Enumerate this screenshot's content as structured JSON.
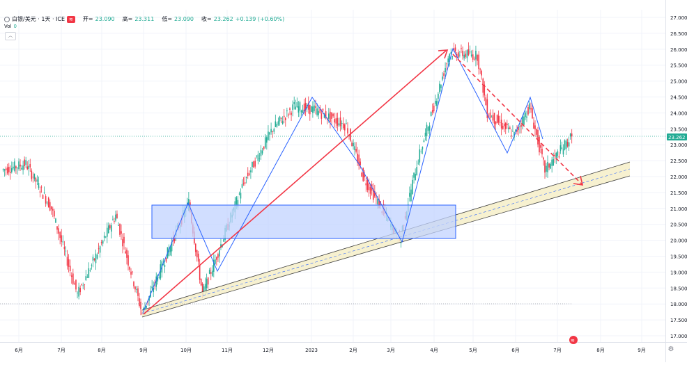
{
  "header": {
    "symbol": "白银/美元 · 1天 · ICE",
    "badge": "≋",
    "open_label": "开=",
    "open": "23.090",
    "high_label": "高=",
    "high": "23.311",
    "low_label": "低=",
    "low": "23.090",
    "close_label": "收=",
    "close": "23.262",
    "change": "+0.139 (+0.60%)",
    "vol_label": "Vol",
    "vol": "0",
    "collapse_icon": "chevron-up-icon"
  },
  "chart_data": {
    "type": "candlestick",
    "price_axis": {
      "min": 17.0,
      "max": 27.0,
      "side": "right",
      "ticks": [
        "27.000",
        "26.500",
        "26.000",
        "25.500",
        "25.000",
        "24.500",
        "24.000",
        "23.500",
        "23.000",
        "22.500",
        "22.000",
        "21.500",
        "21.000",
        "20.500",
        "20.000",
        "19.500",
        "19.000",
        "18.500",
        "18.000",
        "17.500",
        "17.000"
      ]
    },
    "time_axis": [
      "6月",
      "7月",
      "8月",
      "9月",
      "10月",
      "11月",
      "12月",
      "2023",
      "2月",
      "3月",
      "4月",
      "5月",
      "6月",
      "7月",
      "8月",
      "9月"
    ],
    "last_price": "23.262",
    "last_price_color": "#22ab94",
    "up_color": "#22ab94",
    "down_color": "#f23645",
    "key_points": [
      {
        "date": "2022-05-20",
        "price": 22.2
      },
      {
        "date": "2022-06-07",
        "price": 22.4
      },
      {
        "date": "2022-06-25",
        "price": 21.0
      },
      {
        "date": "2022-07-14",
        "price": 18.3
      },
      {
        "date": "2022-08-12",
        "price": 20.8
      },
      {
        "date": "2022-09-01",
        "price": 17.7
      },
      {
        "date": "2022-10-04",
        "price": 21.2
      },
      {
        "date": "2022-10-14",
        "price": 18.3
      },
      {
        "date": "2022-11-14",
        "price": 21.8
      },
      {
        "date": "2022-12-05",
        "price": 23.5
      },
      {
        "date": "2022-12-20",
        "price": 24.2
      },
      {
        "date": "2023-01-04",
        "price": 24.1
      },
      {
        "date": "2023-01-27",
        "price": 23.6
      },
      {
        "date": "2023-02-10",
        "price": 22.0
      },
      {
        "date": "2023-03-08",
        "price": 20.0
      },
      {
        "date": "2023-03-20",
        "price": 22.4
      },
      {
        "date": "2023-04-14",
        "price": 25.9
      },
      {
        "date": "2023-05-05",
        "price": 25.8
      },
      {
        "date": "2023-05-12",
        "price": 24.0
      },
      {
        "date": "2023-05-31",
        "price": 23.3
      },
      {
        "date": "2023-06-12",
        "price": 24.2
      },
      {
        "date": "2023-06-23",
        "price": 22.2
      },
      {
        "date": "2023-07-12",
        "price": 23.26
      }
    ],
    "drawings": {
      "zigzag_color": "#2962ff",
      "arrow_color": "#f23645",
      "channel_fill": "#f6eec8",
      "channel_line": "#404040",
      "rect_fill": "#c2d3ff",
      "rect_border": "#2962ff"
    },
    "watermark": "≋"
  }
}
